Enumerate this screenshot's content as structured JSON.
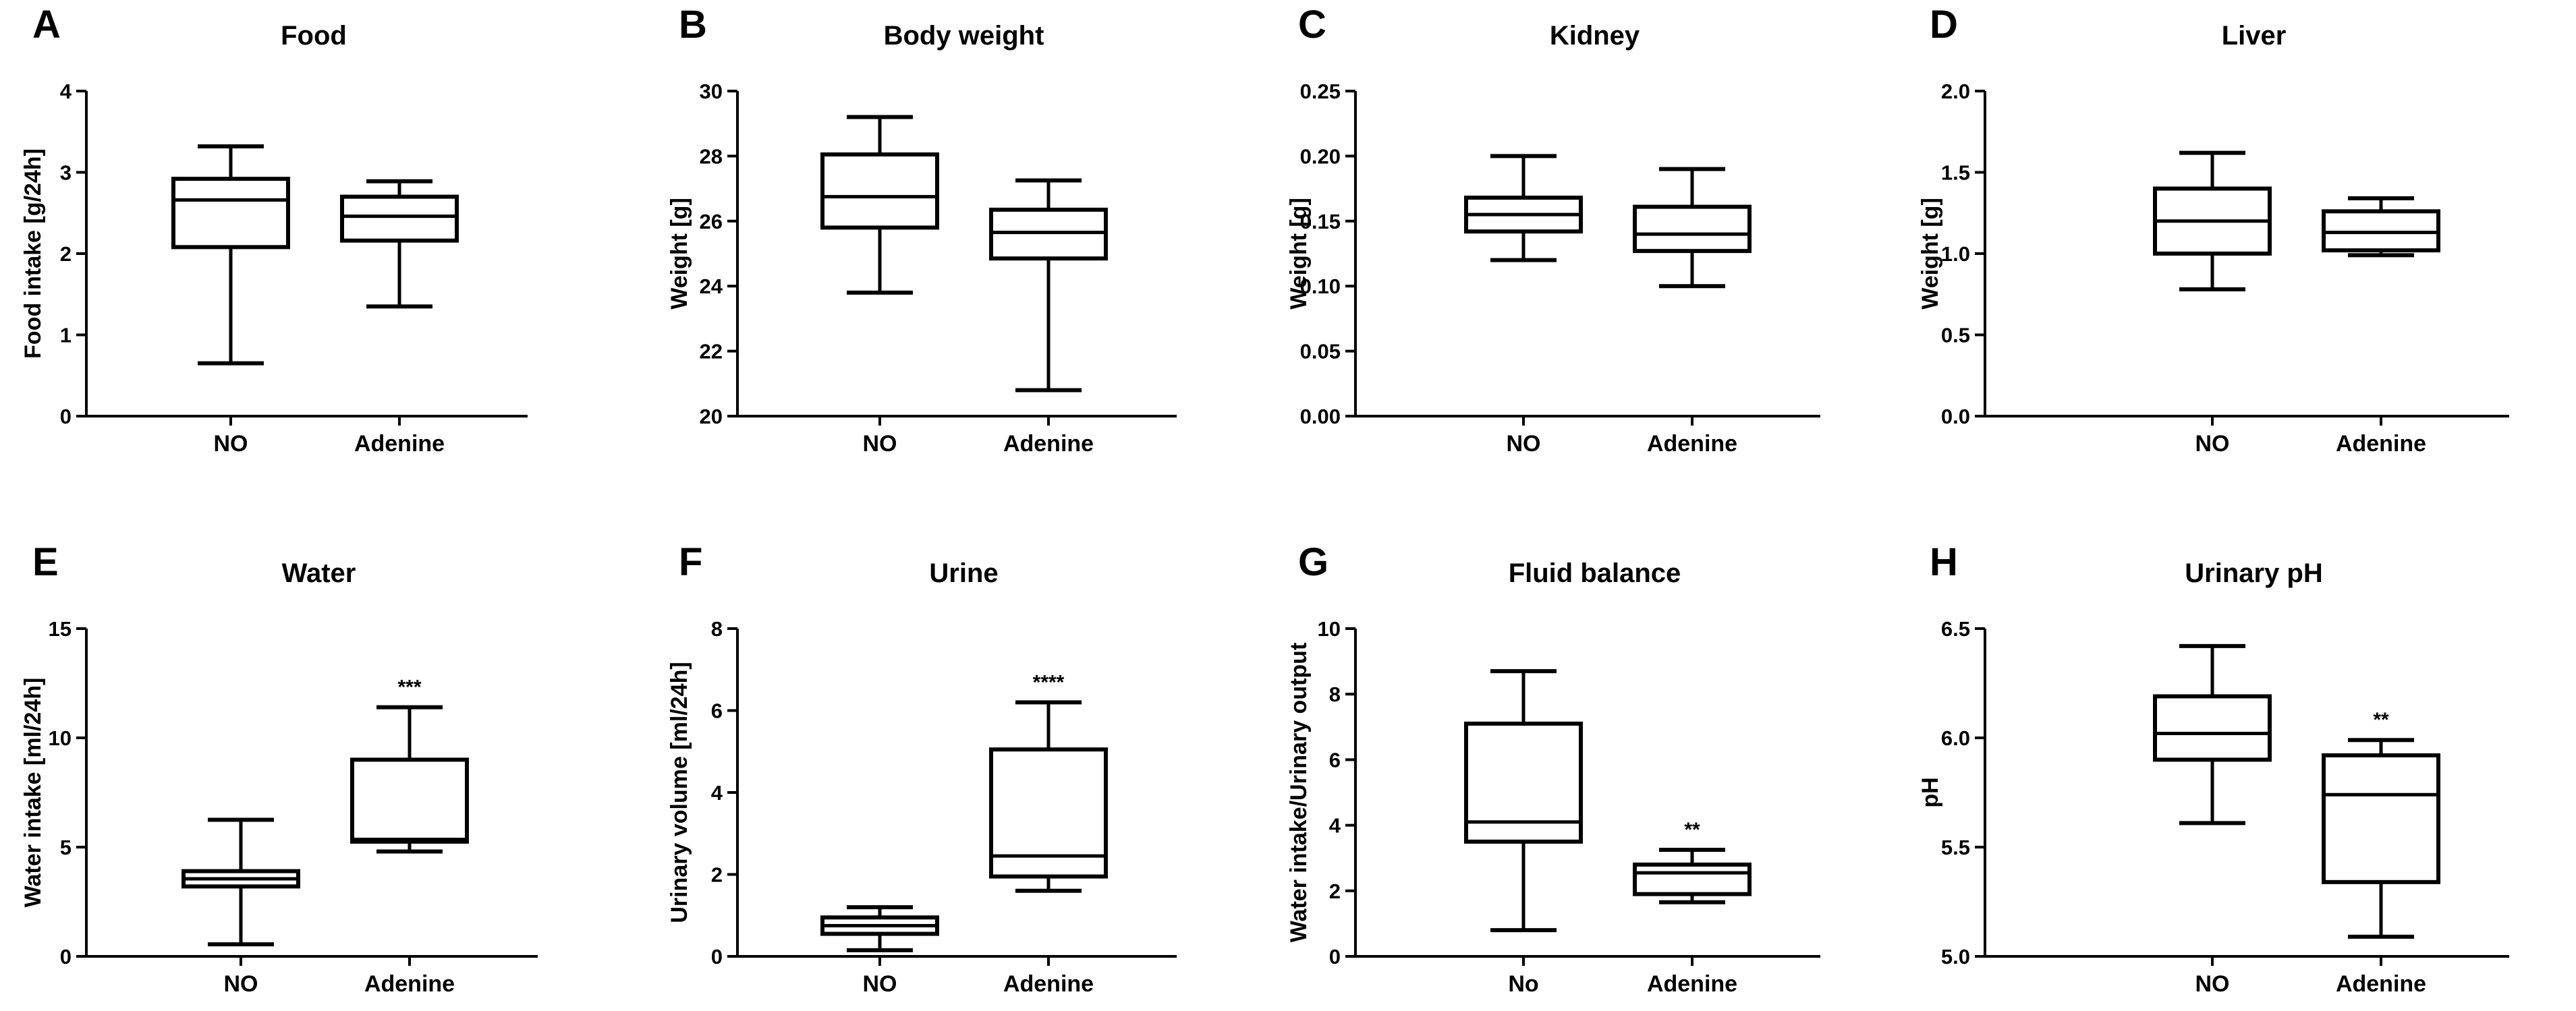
{
  "chart_data": [
    {
      "type": "boxplot",
      "panel": "A",
      "title": "Food",
      "ylabel": "Food intake [g/24h]",
      "ylim": [
        0,
        4
      ],
      "yticks": [
        0,
        1,
        2,
        3,
        4
      ],
      "tick_labels": [
        "0",
        "1",
        "2",
        "3",
        "4"
      ],
      "categories": [
        "NO",
        "Adenine"
      ],
      "boxes": [
        {
          "min": 0.65,
          "q1": 2.08,
          "median": 2.66,
          "q3": 2.92,
          "max": 3.32,
          "sig": ""
        },
        {
          "min": 1.35,
          "q1": 2.16,
          "median": 2.46,
          "q3": 2.7,
          "max": 2.89,
          "sig": ""
        }
      ]
    },
    {
      "type": "boxplot",
      "panel": "B",
      "title": "Body weight",
      "ylabel": "Weight [g]",
      "ylim": [
        20,
        30
      ],
      "yticks": [
        20,
        22,
        24,
        26,
        28,
        30
      ],
      "tick_labels": [
        "20",
        "22",
        "24",
        "26",
        "28",
        "30"
      ],
      "categories": [
        "NO",
        "Adenine"
      ],
      "boxes": [
        {
          "min": 23.8,
          "q1": 25.8,
          "median": 26.75,
          "q3": 28.05,
          "max": 29.2,
          "sig": ""
        },
        {
          "min": 20.8,
          "q1": 24.85,
          "median": 25.65,
          "q3": 26.35,
          "max": 27.25,
          "sig": ""
        }
      ]
    },
    {
      "type": "boxplot",
      "panel": "C",
      "title": "Kidney",
      "ylabel": "Weight [g]",
      "ylim": [
        0,
        0.25
      ],
      "yticks": [
        0,
        0.05,
        0.1,
        0.15,
        0.2,
        0.25
      ],
      "tick_labels": [
        "0.00",
        "0.05",
        "0.10",
        "0.15",
        "0.20",
        "0.25"
      ],
      "categories": [
        "NO",
        "Adenine"
      ],
      "boxes": [
        {
          "min": 0.12,
          "q1": 0.142,
          "median": 0.155,
          "q3": 0.168,
          "max": 0.2,
          "sig": ""
        },
        {
          "min": 0.1,
          "q1": 0.127,
          "median": 0.14,
          "q3": 0.161,
          "max": 0.19,
          "sig": ""
        }
      ]
    },
    {
      "type": "boxplot",
      "panel": "D",
      "title": "Liver",
      "ylabel": "Weight [g]",
      "ylim": [
        0,
        2
      ],
      "yticks": [
        0,
        0.5,
        1,
        1.5,
        2
      ],
      "tick_labels": [
        "0.0",
        "0.5",
        "1.0",
        "1.5",
        "2.0"
      ],
      "categories": [
        "NO",
        "Adenine"
      ],
      "boxes": [
        {
          "min": 0.78,
          "q1": 1.0,
          "median": 1.2,
          "q3": 1.4,
          "max": 1.62,
          "sig": ""
        },
        {
          "min": 0.99,
          "q1": 1.02,
          "median": 1.13,
          "q3": 1.26,
          "max": 1.34,
          "sig": ""
        }
      ]
    },
    {
      "type": "boxplot",
      "panel": "E",
      "title": "Water",
      "ylabel": "Water intake [ml/24h]",
      "ylim": [
        0,
        15
      ],
      "yticks": [
        0,
        5,
        10,
        15
      ],
      "tick_labels": [
        "0",
        "5",
        "10",
        "15"
      ],
      "categories": [
        "NO",
        "Adenine"
      ],
      "boxes": [
        {
          "min": 0.55,
          "q1": 3.2,
          "median": 3.55,
          "q3": 3.9,
          "max": 6.25,
          "sig": ""
        },
        {
          "min": 4.8,
          "q1": 5.25,
          "median": 5.35,
          "q3": 9.0,
          "max": 11.4,
          "sig": "***"
        }
      ]
    },
    {
      "type": "boxplot",
      "panel": "F",
      "title": "Urine",
      "ylabel": "Urinary volume  [ml/24h]",
      "ylim": [
        0,
        8
      ],
      "yticks": [
        0,
        2,
        4,
        6,
        8
      ],
      "tick_labels": [
        "0",
        "2",
        "4",
        "6",
        "8"
      ],
      "categories": [
        "NO",
        "Adenine"
      ],
      "boxes": [
        {
          "min": 0.15,
          "q1": 0.55,
          "median": 0.75,
          "q3": 0.95,
          "max": 1.2,
          "sig": ""
        },
        {
          "min": 1.6,
          "q1": 1.95,
          "median": 2.45,
          "q3": 5.05,
          "max": 6.2,
          "sig": "****"
        }
      ]
    },
    {
      "type": "boxplot",
      "panel": "G",
      "title": "Fluid balance",
      "ylabel": "Water intake/Urinary output",
      "ylim": [
        0,
        10
      ],
      "yticks": [
        0,
        2,
        4,
        6,
        8,
        10
      ],
      "tick_labels": [
        "0",
        "2",
        "4",
        "6",
        "8",
        "10"
      ],
      "categories": [
        "No",
        "Adenine"
      ],
      "boxes": [
        {
          "min": 0.8,
          "q1": 3.5,
          "median": 4.1,
          "q3": 7.1,
          "max": 8.7,
          "sig": ""
        },
        {
          "min": 1.65,
          "q1": 1.9,
          "median": 2.55,
          "q3": 2.8,
          "max": 3.25,
          "sig": "**"
        }
      ]
    },
    {
      "type": "boxplot",
      "panel": "H",
      "title": "Urinary pH",
      "ylabel": "pH",
      "ylim": [
        5.0,
        6.5
      ],
      "yticks": [
        5.0,
        5.5,
        6.0,
        6.5
      ],
      "tick_labels": [
        "5.0",
        "5.5",
        "6.0",
        "6.5"
      ],
      "categories": [
        "NO",
        "Adenine"
      ],
      "boxes": [
        {
          "min": 5.61,
          "q1": 5.9,
          "median": 6.02,
          "q3": 6.19,
          "max": 6.42,
          "sig": ""
        },
        {
          "min": 5.09,
          "q1": 5.34,
          "median": 5.74,
          "q3": 5.92,
          "max": 5.99,
          "sig": "**"
        }
      ]
    }
  ]
}
